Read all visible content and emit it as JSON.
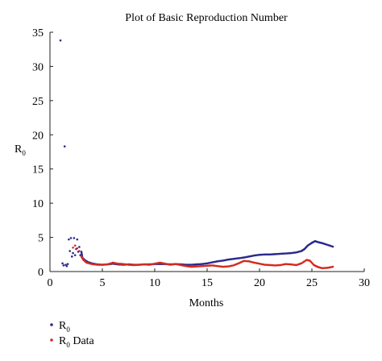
{
  "chart_data": {
    "type": "scatter",
    "title": "Plot of Basic Reproduction Number",
    "xlabel": "Months",
    "ylabel": "R",
    "ylabel_subscript": "0",
    "xlim": [
      0,
      30
    ],
    "ylim": [
      0,
      35
    ],
    "xticks": [
      0,
      5,
      10,
      15,
      20,
      25,
      30
    ],
    "yticks": [
      0,
      5,
      10,
      15,
      20,
      25,
      30,
      35
    ],
    "grid": false,
    "legend": "bottom-left",
    "series": [
      {
        "name": "R",
        "name_subscript": "0",
        "color": "#2a2a8c",
        "marker": "dot",
        "points": [
          [
            1.0,
            33.8
          ],
          [
            1.4,
            18.3
          ],
          [
            1.2,
            1.2
          ],
          [
            1.3,
            0.9
          ],
          [
            1.5,
            1.0
          ],
          [
            1.6,
            0.8
          ],
          [
            1.7,
            1.1
          ],
          [
            1.8,
            4.7
          ],
          [
            1.9,
            3.0
          ],
          [
            2.0,
            4.9
          ],
          [
            2.1,
            2.2
          ],
          [
            2.2,
            2.7
          ],
          [
            2.3,
            4.9
          ],
          [
            2.4,
            2.4
          ],
          [
            2.5,
            3.3
          ],
          [
            2.6,
            4.7
          ],
          [
            2.7,
            2.9
          ],
          [
            2.8,
            3.6
          ],
          [
            2.9,
            2.4
          ],
          [
            3.0,
            2.9
          ],
          [
            3.1,
            2.0
          ],
          [
            3.3,
            1.7
          ],
          [
            3.6,
            1.4
          ],
          [
            4.0,
            1.2
          ],
          [
            4.5,
            1.05
          ],
          [
            5.0,
            1.0
          ],
          [
            5.5,
            1.05
          ],
          [
            6.0,
            1.15
          ],
          [
            6.5,
            1.05
          ],
          [
            7.0,
            1.0
          ],
          [
            7.5,
            1.05
          ],
          [
            8.0,
            1.0
          ],
          [
            8.5,
            1.0
          ],
          [
            9.0,
            1.05
          ],
          [
            9.5,
            1.05
          ],
          [
            10.0,
            1.1
          ],
          [
            10.5,
            1.1
          ],
          [
            11.0,
            1.1
          ],
          [
            11.5,
            1.05
          ],
          [
            12.0,
            1.1
          ],
          [
            12.5,
            1.05
          ],
          [
            13.0,
            1.0
          ],
          [
            13.5,
            1.0
          ],
          [
            14.0,
            1.05
          ],
          [
            14.5,
            1.1
          ],
          [
            15.0,
            1.2
          ],
          [
            15.5,
            1.35
          ],
          [
            16.0,
            1.5
          ],
          [
            16.5,
            1.6
          ],
          [
            17.0,
            1.75
          ],
          [
            17.5,
            1.85
          ],
          [
            18.0,
            1.95
          ],
          [
            18.5,
            2.05
          ],
          [
            19.0,
            2.2
          ],
          [
            19.5,
            2.35
          ],
          [
            20.0,
            2.45
          ],
          [
            20.5,
            2.5
          ],
          [
            21.0,
            2.5
          ],
          [
            21.5,
            2.55
          ],
          [
            22.0,
            2.6
          ],
          [
            22.5,
            2.65
          ],
          [
            23.0,
            2.7
          ],
          [
            23.5,
            2.8
          ],
          [
            24.0,
            3.0
          ],
          [
            24.3,
            3.3
          ],
          [
            24.6,
            3.8
          ],
          [
            25.0,
            4.2
          ],
          [
            25.3,
            4.45
          ],
          [
            25.6,
            4.3
          ],
          [
            26.0,
            4.15
          ],
          [
            26.5,
            3.9
          ],
          [
            27.0,
            3.65
          ]
        ]
      },
      {
        "name": "R",
        "name_subscript": "0",
        "name_suffix": " Data",
        "color": "#d42a1e",
        "marker": "dot",
        "points": [
          [
            2.2,
            3.5
          ],
          [
            2.4,
            3.8
          ],
          [
            2.6,
            3.4
          ],
          [
            2.8,
            3.0
          ],
          [
            3.0,
            2.2
          ],
          [
            3.2,
            1.7
          ],
          [
            3.5,
            1.3
          ],
          [
            4.0,
            1.1
          ],
          [
            4.5,
            1.0
          ],
          [
            5.0,
            1.0
          ],
          [
            5.5,
            1.05
          ],
          [
            6.0,
            1.3
          ],
          [
            6.5,
            1.15
          ],
          [
            7.0,
            1.1
          ],
          [
            7.5,
            1.0
          ],
          [
            8.0,
            0.95
          ],
          [
            8.5,
            1.0
          ],
          [
            9.0,
            1.05
          ],
          [
            9.5,
            1.0
          ],
          [
            10.0,
            1.15
          ],
          [
            10.5,
            1.3
          ],
          [
            11.0,
            1.15
          ],
          [
            11.5,
            1.0
          ],
          [
            12.0,
            1.1
          ],
          [
            12.5,
            0.95
          ],
          [
            13.0,
            0.8
          ],
          [
            13.5,
            0.7
          ],
          [
            14.0,
            0.75
          ],
          [
            14.5,
            0.8
          ],
          [
            15.0,
            0.85
          ],
          [
            15.5,
            0.9
          ],
          [
            16.0,
            0.8
          ],
          [
            16.5,
            0.7
          ],
          [
            17.0,
            0.75
          ],
          [
            17.5,
            0.9
          ],
          [
            18.0,
            1.2
          ],
          [
            18.5,
            1.55
          ],
          [
            19.0,
            1.5
          ],
          [
            19.5,
            1.3
          ],
          [
            20.0,
            1.15
          ],
          [
            20.5,
            1.0
          ],
          [
            21.0,
            0.95
          ],
          [
            21.5,
            0.9
          ],
          [
            22.0,
            0.95
          ],
          [
            22.5,
            1.1
          ],
          [
            23.0,
            1.05
          ],
          [
            23.5,
            0.95
          ],
          [
            24.0,
            1.2
          ],
          [
            24.5,
            1.7
          ],
          [
            24.8,
            1.6
          ],
          [
            25.2,
            0.95
          ],
          [
            25.6,
            0.65
          ],
          [
            26.0,
            0.5
          ],
          [
            26.5,
            0.55
          ],
          [
            27.0,
            0.7
          ]
        ]
      }
    ]
  }
}
